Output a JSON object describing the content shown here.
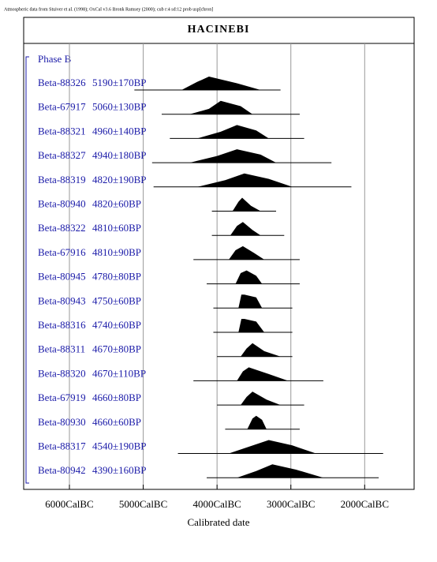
{
  "chart_data": {
    "type": "multiplot",
    "caption": "Atmospheric data from Stuiver et al. (1998); OxCal v3.6 Bronk Ramsey (2000); cub r:4 sd:12 prob usp[chron]",
    "title": "HACINEBI",
    "group": "Phase B",
    "xlabel": "Calibrated date",
    "xlim": [
      6620,
      1330
    ],
    "xticks": [
      {
        "value": 6000,
        "label": "6000CalBC"
      },
      {
        "value": 5000,
        "label": "5000CalBC"
      },
      {
        "value": 4000,
        "label": "4000CalBC"
      },
      {
        "value": 3000,
        "label": "3000CalBC"
      },
      {
        "value": 2000,
        "label": "2000CalBC"
      }
    ],
    "grid": true,
    "color": "#000000",
    "rows": [
      {
        "name": "Beta-88326",
        "date": "5190±170BP",
        "range": [
          5120,
          3140
        ],
        "dist_x": [
          4480,
          4270,
          4110,
          3730,
          3410
        ],
        "dist_y": [
          0,
          0.6,
          1,
          0.5,
          0
        ]
      },
      {
        "name": "Beta-67917",
        "date": "5060±130BP",
        "range": [
          4750,
          2880
        ],
        "dist_x": [
          4370,
          4110,
          3950,
          3680,
          3520
        ],
        "dist_y": [
          0,
          0.4,
          1,
          0.6,
          0
        ]
      },
      {
        "name": "Beta-88321",
        "date": "4960±140BP",
        "range": [
          4640,
          2820
        ],
        "dist_x": [
          4270,
          3950,
          3730,
          3470,
          3300
        ],
        "dist_y": [
          0,
          0.5,
          1,
          0.6,
          0
        ]
      },
      {
        "name": "Beta-88327",
        "date": "4940±180BP",
        "range": [
          4880,
          2450
        ],
        "dist_x": [
          4370,
          4000,
          3730,
          3410,
          3200
        ],
        "dist_y": [
          0,
          0.5,
          1,
          0.6,
          0
        ]
      },
      {
        "name": "Beta-88319",
        "date": "4820±190BP",
        "range": [
          4860,
          2180
        ],
        "dist_x": [
          4270,
          3890,
          3630,
          3300,
          2980
        ],
        "dist_y": [
          0,
          0.5,
          1,
          0.6,
          0
        ]
      },
      {
        "name": "Beta-80940",
        "date": "4820±60BP",
        "range": [
          4070,
          3200
        ],
        "dist_x": [
          3790,
          3710,
          3660,
          3540,
          3410
        ],
        "dist_y": [
          0,
          0.7,
          1,
          0.4,
          0
        ]
      },
      {
        "name": "Beta-88322",
        "date": "4810±60BP",
        "range": [
          4070,
          3090
        ],
        "dist_x": [
          3820,
          3730,
          3650,
          3520,
          3410
        ],
        "dist_y": [
          0,
          0.7,
          1,
          0.4,
          0
        ]
      },
      {
        "name": "Beta-67916",
        "date": "4810±90BP",
        "range": [
          4320,
          2880
        ],
        "dist_x": [
          3840,
          3750,
          3650,
          3500,
          3360
        ],
        "dist_y": [
          0,
          0.7,
          1,
          0.5,
          0
        ]
      },
      {
        "name": "Beta-80945",
        "date": "4780±80BP",
        "range": [
          4140,
          2880
        ],
        "dist_x": [
          3750,
          3680,
          3600,
          3470,
          3390
        ],
        "dist_y": [
          0,
          0.8,
          1,
          0.6,
          0
        ]
      },
      {
        "name": "Beta-80943",
        "date": "4750±60BP",
        "range": [
          4050,
          2980
        ],
        "dist_x": [
          3710,
          3670,
          3630,
          3470,
          3390
        ],
        "dist_y": [
          0,
          1,
          1,
          0.8,
          0
        ]
      },
      {
        "name": "Beta-88316",
        "date": "4740±60BP",
        "range": [
          4050,
          2980
        ],
        "dist_x": [
          3710,
          3670,
          3630,
          3470,
          3360
        ],
        "dist_y": [
          0,
          1,
          1,
          0.8,
          0
        ]
      },
      {
        "name": "Beta-88311",
        "date": "4670±80BP",
        "range": [
          4000,
          2980
        ],
        "dist_x": [
          3680,
          3600,
          3520,
          3360,
          3140
        ],
        "dist_y": [
          0,
          0.6,
          1,
          0.4,
          0
        ]
      },
      {
        "name": "Beta-88320",
        "date": "4670±110BP",
        "range": [
          4320,
          2560
        ],
        "dist_x": [
          3730,
          3650,
          3570,
          3300,
          3040
        ],
        "dist_y": [
          0,
          0.7,
          1,
          0.5,
          0
        ]
      },
      {
        "name": "Beta-67919",
        "date": "4660±80BP",
        "range": [
          4000,
          2820
        ],
        "dist_x": [
          3680,
          3600,
          3520,
          3330,
          3140
        ],
        "dist_y": [
          0,
          0.6,
          1,
          0.4,
          0
        ]
      },
      {
        "name": "Beta-80930",
        "date": "4660±60BP",
        "range": [
          3890,
          2880
        ],
        "dist_x": [
          3590,
          3520,
          3470,
          3390,
          3330
        ],
        "dist_y": [
          0,
          0.8,
          1,
          0.7,
          0
        ]
      },
      {
        "name": "Beta-88317",
        "date": "4540±190BP",
        "range": [
          4530,
          1750
        ],
        "dist_x": [
          3840,
          3570,
          3300,
          2980,
          2660
        ],
        "dist_y": [
          0,
          0.5,
          1,
          0.6,
          0
        ]
      },
      {
        "name": "Beta-80942",
        "date": "4390±160BP",
        "range": [
          4140,
          1810
        ],
        "dist_x": [
          3730,
          3470,
          3250,
          2930,
          2560
        ],
        "dist_y": [
          0,
          0.5,
          1,
          0.6,
          0
        ]
      }
    ]
  }
}
